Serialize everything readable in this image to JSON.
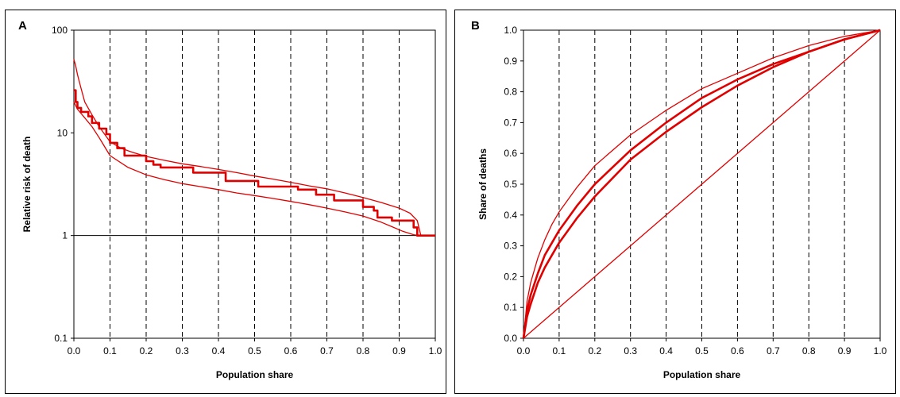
{
  "chart_data": [
    {
      "panel": "A",
      "type": "line",
      "xlabel": "Population share",
      "ylabel": "Relative risk of death",
      "xlim": [
        0,
        1
      ],
      "ylim": [
        0.1,
        100
      ],
      "yscale": "log",
      "xticks": [
        "0.0",
        "0.1",
        "0.2",
        "0.3",
        "0.4",
        "0.5",
        "0.6",
        "0.7",
        "0.8",
        "0.9",
        "1.0"
      ],
      "yticks": [
        "0.1",
        "1",
        "10",
        "100"
      ],
      "grid": "vertical dashed",
      "reference_line_y": 1,
      "color": "#e00000",
      "series": [
        {
          "x": [
            0,
            0.005,
            0.01,
            0.02,
            0.03,
            0.05,
            0.07,
            0.1,
            0.13,
            0.16,
            0.2,
            0.25,
            0.3,
            0.35,
            0.4,
            0.45,
            0.5,
            0.55,
            0.6,
            0.65,
            0.7,
            0.75,
            0.8,
            0.85,
            0.9,
            0.93,
            0.95,
            0.96,
            1.0
          ],
          "y": [
            52,
            45,
            37,
            27,
            20,
            15,
            11.5,
            8.2,
            7.1,
            6.5,
            5.9,
            5.4,
            5.0,
            4.7,
            4.4,
            4.1,
            3.8,
            3.55,
            3.3,
            3.05,
            2.85,
            2.6,
            2.35,
            2.1,
            1.85,
            1.65,
            1.4,
            1.0,
            1.0
          ]
        },
        {
          "x": [
            0,
            0.005,
            0.005,
            0.01,
            0.01,
            0.02,
            0.02,
            0.04,
            0.04,
            0.05,
            0.05,
            0.07,
            0.07,
            0.09,
            0.09,
            0.1,
            0.1,
            0.12,
            0.12,
            0.14,
            0.14,
            0.2,
            0.2,
            0.22,
            0.22,
            0.24,
            0.24,
            0.33,
            0.33,
            0.42,
            0.42,
            0.51,
            0.51,
            0.62,
            0.62,
            0.67,
            0.67,
            0.72,
            0.72,
            0.8,
            0.8,
            0.83,
            0.83,
            0.84,
            0.84,
            0.88,
            0.88,
            0.94,
            0.94,
            0.95,
            0.95,
            1.0
          ],
          "y": [
            26,
            26,
            20,
            20,
            17.5,
            17.5,
            16,
            16,
            14.5,
            14.5,
            12.5,
            12.5,
            11,
            11,
            9.7,
            9.7,
            8,
            8,
            7.1,
            7.1,
            6,
            6,
            5.3,
            5.3,
            4.9,
            4.9,
            4.6,
            4.6,
            4.1,
            4.1,
            3.4,
            3.4,
            3.0,
            3.0,
            2.8,
            2.8,
            2.5,
            2.5,
            2.2,
            2.2,
            1.9,
            1.9,
            1.75,
            1.75,
            1.5,
            1.5,
            1.4,
            1.4,
            1.2,
            1.2,
            1.0,
            1.0
          ]
        },
        {
          "x": [
            0,
            0.01,
            0.03,
            0.05,
            0.07,
            0.1,
            0.15,
            0.2,
            0.25,
            0.3,
            0.35,
            0.4,
            0.45,
            0.5,
            0.55,
            0.6,
            0.65,
            0.7,
            0.75,
            0.8,
            0.85,
            0.88,
            0.91,
            0.94,
            0.955,
            1.0
          ],
          "y": [
            20,
            17,
            14,
            11.5,
            9,
            6,
            4.6,
            3.9,
            3.5,
            3.2,
            3.0,
            2.8,
            2.6,
            2.45,
            2.3,
            2.15,
            2.0,
            1.85,
            1.7,
            1.55,
            1.35,
            1.22,
            1.1,
            1.02,
            1.0,
            1.0
          ]
        }
      ]
    },
    {
      "panel": "B",
      "type": "line",
      "xlabel": "Population share",
      "ylabel": "Share of deaths",
      "xlim": [
        0,
        1
      ],
      "ylim": [
        0,
        1
      ],
      "xticks": [
        "0.0",
        "0.1",
        "0.2",
        "0.3",
        "0.4",
        "0.5",
        "0.6",
        "0.7",
        "0.8",
        "0.9",
        "1.0"
      ],
      "yticks": [
        "0.0",
        "0.1",
        "0.2",
        "0.3",
        "0.4",
        "0.5",
        "0.6",
        "0.7",
        "0.8",
        "0.9",
        "1.0"
      ],
      "grid": "vertical dashed",
      "color": "#e00000",
      "series": [
        {
          "x": [
            0,
            0.01,
            0.02,
            0.04,
            0.06,
            0.08,
            0.1,
            0.15,
            0.2,
            0.3,
            0.4,
            0.5,
            0.6,
            0.7,
            0.8,
            0.9,
            1.0
          ],
          "y": [
            0,
            0.12,
            0.18,
            0.26,
            0.32,
            0.37,
            0.41,
            0.49,
            0.56,
            0.66,
            0.74,
            0.81,
            0.86,
            0.91,
            0.95,
            0.98,
            1.0
          ]
        },
        {
          "x": [
            0,
            0.01,
            0.02,
            0.04,
            0.06,
            0.08,
            0.1,
            0.15,
            0.2,
            0.3,
            0.4,
            0.5,
            0.6,
            0.7,
            0.8,
            0.9,
            1.0
          ],
          "y": [
            0,
            0.09,
            0.14,
            0.21,
            0.27,
            0.31,
            0.35,
            0.43,
            0.5,
            0.61,
            0.7,
            0.78,
            0.84,
            0.89,
            0.93,
            0.97,
            1.0
          ]
        },
        {
          "x": [
            0,
            0.01,
            0.02,
            0.04,
            0.06,
            0.08,
            0.1,
            0.15,
            0.2,
            0.3,
            0.4,
            0.5,
            0.6,
            0.7,
            0.8,
            0.9,
            1.0
          ],
          "y": [
            0,
            0.07,
            0.11,
            0.18,
            0.23,
            0.27,
            0.31,
            0.39,
            0.46,
            0.58,
            0.67,
            0.75,
            0.82,
            0.88,
            0.93,
            0.97,
            1.0
          ]
        },
        {
          "x": [
            0,
            1
          ],
          "y": [
            0,
            1
          ]
        }
      ]
    }
  ]
}
